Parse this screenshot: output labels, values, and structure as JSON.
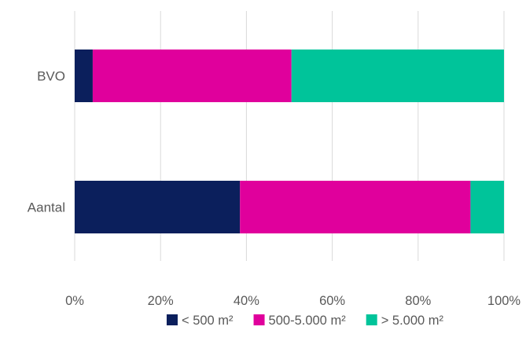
{
  "chart_data": {
    "type": "bar",
    "orientation": "horizontal",
    "stacked": "percent",
    "categories": [
      "BVO",
      "Aantal"
    ],
    "series": [
      {
        "name": "< 500 m²",
        "color": "#0b1f5c",
        "values": [
          4.2,
          38.5
        ]
      },
      {
        "name": "500-5.000 m²",
        "color": "#e0009c",
        "values": [
          46.3,
          53.7
        ]
      },
      {
        "name": "> 5.000 m²",
        "color": "#00c49a",
        "values": [
          49.5,
          7.8
        ]
      }
    ],
    "xlim": [
      0,
      100
    ],
    "xticks": [
      0,
      20,
      40,
      60,
      80,
      100
    ],
    "xtick_labels": [
      "0%",
      "20%",
      "40%",
      "60%",
      "80%",
      "100%"
    ],
    "grid": "vertical",
    "legend": "bottom",
    "title": "",
    "xlabel": "",
    "ylabel": ""
  }
}
